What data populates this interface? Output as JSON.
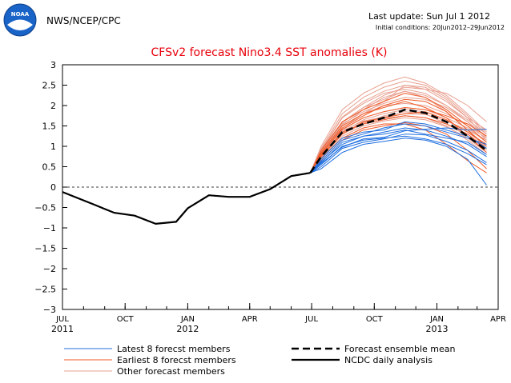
{
  "header": {
    "agency": "NWS/NCEP/CPC",
    "logo_text": "NOAA",
    "last_update": "Last update: Sun Jul  1 2012",
    "initial_conditions": "Initial conditions: 20Jun2012–29Jun2012"
  },
  "colors": {
    "title": "#e8000b",
    "latest": "#1f6fe0",
    "earliest": "#f05a28",
    "other": "#e8a090",
    "ensemble_mean": "#000000",
    "observed": "#000000",
    "logo_blue": "#1a64c8"
  },
  "chart_data": {
    "type": "line",
    "title": "CFSv2 forecast Nino3.4 SST anomalies (K)",
    "ylim": [
      -3,
      3
    ],
    "yticks": [
      "3",
      "2.5",
      "2",
      "1.5",
      "1",
      "0.5",
      "0",
      "−0.5",
      "−1",
      "−1.5",
      "−2",
      "−2.5",
      "−3"
    ],
    "xlim": [
      "2011-07-01",
      "2013-04-01"
    ],
    "xticks": [
      {
        "date": "2011-07-01",
        "label": "JUL",
        "year": "2011"
      },
      {
        "date": "2011-10-01",
        "label": "OCT",
        "year": ""
      },
      {
        "date": "2012-01-01",
        "label": "JAN",
        "year": "2012"
      },
      {
        "date": "2012-04-01",
        "label": "APR",
        "year": ""
      },
      {
        "date": "2012-07-01",
        "label": "JUL",
        "year": ""
      },
      {
        "date": "2012-10-01",
        "label": "OCT",
        "year": ""
      },
      {
        "date": "2013-01-01",
        "label": "JAN",
        "year": "2013"
      },
      {
        "date": "2013-04-01",
        "label": "APR",
        "year": ""
      }
    ],
    "zero_line": true,
    "legend": [
      {
        "label": "Latest 8 forecst members",
        "color": "#1f6fe0",
        "style": "solid"
      },
      {
        "label": "Earliest 8 forecst members",
        "color": "#f05a28",
        "style": "solid"
      },
      {
        "label": "Other forecast members",
        "color": "#e8a090",
        "style": "solid"
      },
      {
        "label": "Forecast ensemble mean",
        "color": "#000000",
        "style": "dashed"
      },
      {
        "label": "NCDC daily analysis",
        "color": "#000000",
        "style": "solid"
      }
    ],
    "observed": {
      "x": [
        "2011-07-01",
        "2011-08-15",
        "2011-09-15",
        "2011-10-15",
        "2011-11-15",
        "2011-12-15",
        "2012-01-01",
        "2012-02-01",
        "2012-03-01",
        "2012-04-01",
        "2012-05-01",
        "2012-06-01",
        "2012-06-29"
      ],
      "y": [
        -0.12,
        -0.42,
        -0.63,
        -0.7,
        -0.9,
        -0.85,
        -0.52,
        -0.2,
        -0.24,
        -0.24,
        -0.05,
        0.27,
        0.35
      ]
    },
    "ensemble_mean": {
      "x": [
        "2012-06-29",
        "2012-07-15",
        "2012-08-15",
        "2012-09-15",
        "2012-10-15",
        "2012-11-15",
        "2012-12-15",
        "2013-01-15",
        "2013-02-15",
        "2013-03-15"
      ],
      "y": [
        0.35,
        0.75,
        1.35,
        1.55,
        1.7,
        1.9,
        1.82,
        1.6,
        1.25,
        0.9
      ]
    },
    "members_x": [
      "2012-06-29",
      "2012-07-15",
      "2012-08-15",
      "2012-09-15",
      "2012-10-15",
      "2012-11-15",
      "2012-12-15",
      "2013-01-15",
      "2013-02-15",
      "2013-03-15"
    ],
    "latest_members": [
      [
        0.35,
        0.55,
        1.0,
        1.15,
        1.2,
        1.25,
        1.18,
        1.05,
        0.82,
        0.55
      ],
      [
        0.35,
        0.6,
        1.1,
        1.25,
        1.35,
        1.45,
        1.4,
        1.25,
        1.05,
        0.75
      ],
      [
        0.35,
        0.65,
        1.15,
        1.3,
        1.45,
        1.55,
        1.5,
        1.35,
        1.2,
        1.05
      ],
      [
        0.35,
        0.5,
        0.95,
        1.1,
        1.18,
        1.3,
        1.28,
        1.12,
        0.9,
        0.6
      ],
      [
        0.35,
        0.7,
        1.2,
        1.35,
        1.4,
        1.6,
        1.55,
        1.4,
        1.25,
        0.95
      ],
      [
        0.35,
        0.45,
        0.85,
        1.05,
        1.12,
        1.2,
        1.15,
        1.0,
        0.68,
        0.05
      ],
      [
        0.35,
        0.62,
        1.05,
        1.25,
        1.3,
        1.4,
        1.3,
        1.2,
        1.1,
        0.8
      ],
      [
        0.35,
        0.58,
        0.98,
        1.18,
        1.22,
        1.38,
        1.42,
        1.45,
        1.4,
        1.42
      ]
    ],
    "earliest_members": [
      [
        0.35,
        0.8,
        1.45,
        1.75,
        2.0,
        2.15,
        2.1,
        1.85,
        1.4,
        1.0
      ],
      [
        0.35,
        0.85,
        1.5,
        1.8,
        1.95,
        2.1,
        1.95,
        1.7,
        1.25,
        0.85
      ],
      [
        0.35,
        0.75,
        1.3,
        1.6,
        1.7,
        1.8,
        1.85,
        1.65,
        1.35,
        1.05
      ],
      [
        0.35,
        0.7,
        1.2,
        1.45,
        1.55,
        1.55,
        1.4,
        1.05,
        0.65,
        0.35
      ],
      [
        0.35,
        0.9,
        1.6,
        1.9,
        2.1,
        2.3,
        2.2,
        1.9,
        1.5,
        1.1
      ],
      [
        0.35,
        0.78,
        1.35,
        1.55,
        1.65,
        1.75,
        1.7,
        1.55,
        1.3,
        0.95
      ],
      [
        0.35,
        0.65,
        1.15,
        1.4,
        1.5,
        1.58,
        1.5,
        1.3,
        0.9,
        0.45
      ],
      [
        0.35,
        0.82,
        1.42,
        1.7,
        1.85,
        1.95,
        1.9,
        1.75,
        1.55,
        1.25
      ]
    ],
    "other_members": [
      [
        0.35,
        0.95,
        1.8,
        2.2,
        2.45,
        2.6,
        2.5,
        2.2,
        1.75,
        1.3
      ],
      [
        0.35,
        0.9,
        1.7,
        2.05,
        2.3,
        2.4,
        2.3,
        2.0,
        1.6,
        1.15
      ],
      [
        0.35,
        1.0,
        1.9,
        2.3,
        2.55,
        2.7,
        2.55,
        2.25,
        1.8,
        1.35
      ],
      [
        0.35,
        0.85,
        1.55,
        1.85,
        2.05,
        2.2,
        2.15,
        1.95,
        1.6,
        1.25
      ],
      [
        0.35,
        0.75,
        1.4,
        1.7,
        1.85,
        1.95,
        1.9,
        1.7,
        1.45,
        1.1
      ],
      [
        0.35,
        0.8,
        1.5,
        1.8,
        2.0,
        2.05,
        2.0,
        1.8,
        1.5,
        1.2
      ],
      [
        0.35,
        0.7,
        1.3,
        1.55,
        1.75,
        1.85,
        1.8,
        1.55,
        1.25,
        0.9
      ],
      [
        0.35,
        0.88,
        1.6,
        1.95,
        2.15,
        2.35,
        2.25,
        2.0,
        1.65,
        1.3
      ],
      [
        0.35,
        0.78,
        1.45,
        1.8,
        2.1,
        2.5,
        2.4,
        2.1,
        1.7,
        1.4
      ],
      [
        0.35,
        0.72,
        1.35,
        1.65,
        1.8,
        1.9,
        1.85,
        1.65,
        1.35,
        1.0
      ],
      [
        0.35,
        0.82,
        1.52,
        1.9,
        2.2,
        2.35,
        2.2,
        1.85,
        1.4,
        0.95
      ],
      [
        0.35,
        0.76,
        1.38,
        1.62,
        1.72,
        1.8,
        1.78,
        1.62,
        1.4,
        1.15
      ],
      [
        0.35,
        0.92,
        1.72,
        2.1,
        2.35,
        2.5,
        2.45,
        2.15,
        1.7,
        1.2
      ],
      [
        0.35,
        0.68,
        1.25,
        1.5,
        1.62,
        1.7,
        1.65,
        1.48,
        1.2,
        0.85
      ],
      [
        0.35,
        0.86,
        1.58,
        1.95,
        2.25,
        2.45,
        2.4,
        2.3,
        2.0,
        1.6
      ],
      [
        0.35,
        0.74,
        1.32,
        1.58,
        1.68,
        1.75,
        1.7,
        1.5,
        1.15,
        0.8
      ]
    ]
  }
}
